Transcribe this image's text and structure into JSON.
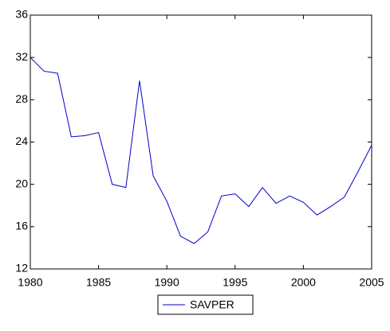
{
  "chart_data": {
    "type": "line",
    "x": [
      1980,
      1981,
      1982,
      1983,
      1984,
      1985,
      1986,
      1987,
      1988,
      1989,
      1990,
      1991,
      1992,
      1993,
      1994,
      1995,
      1996,
      1997,
      1998,
      1999,
      2000,
      2001,
      2002,
      2003,
      2004,
      2005
    ],
    "series": [
      {
        "name": "SAVPER",
        "color": "#0000cc",
        "values": [
          32.0,
          30.7,
          30.5,
          24.5,
          24.6,
          24.9,
          20.0,
          19.7,
          29.8,
          20.8,
          18.4,
          15.1,
          14.4,
          15.5,
          18.9,
          19.1,
          17.9,
          19.7,
          18.2,
          18.9,
          18.3,
          17.1,
          17.9,
          18.8,
          21.2,
          23.7
        ]
      }
    ],
    "xlim": [
      1980,
      2005
    ],
    "xticks": [
      1980,
      1985,
      1990,
      1995,
      2000,
      2005
    ],
    "ylim": [
      12,
      36
    ],
    "yticks": [
      12,
      16,
      20,
      24,
      28,
      32,
      36
    ],
    "legend": "bottom"
  }
}
